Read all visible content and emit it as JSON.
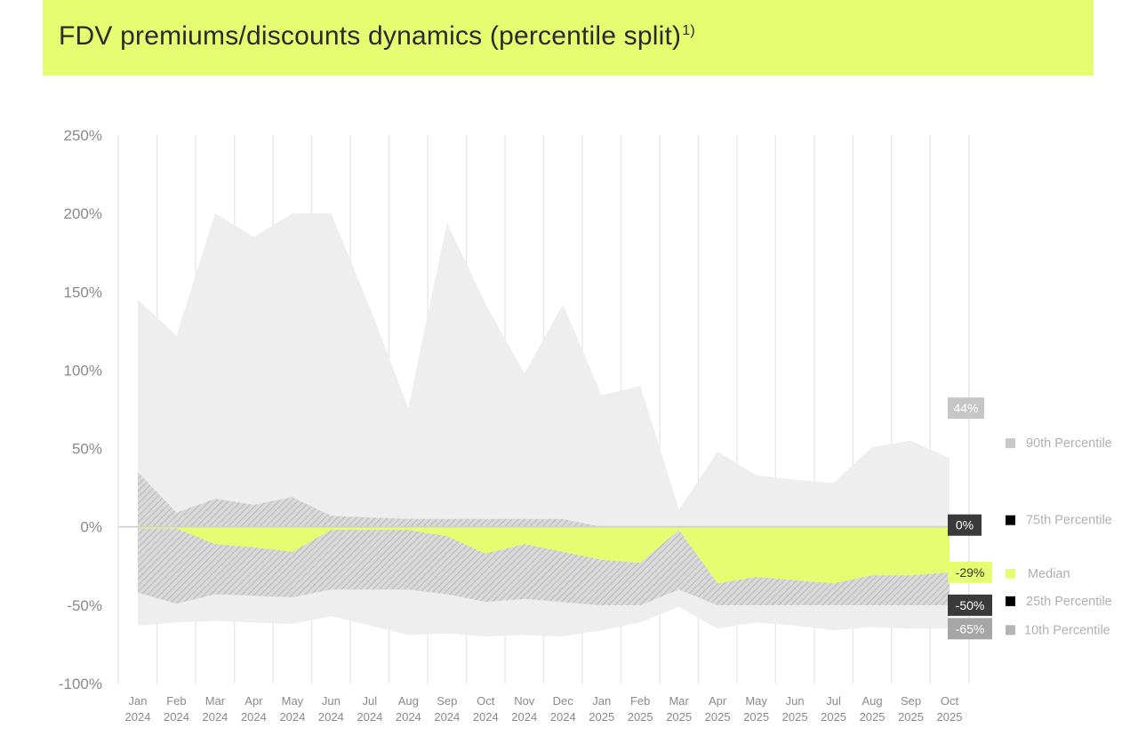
{
  "title": "FDV premiums/discounts dynamics (percentile split)",
  "title_footnote": "1)",
  "colors": {
    "header_bg": "#e6fd72",
    "band_outer": "#eeeeee",
    "band_inner_hatch": "#d3d3d3",
    "median": "#e6fd72",
    "zero_line": "#cfcfcf",
    "grid": "#e9e9e9"
  },
  "chart_data": {
    "type": "area",
    "ylim": [
      -100,
      250
    ],
    "yticks": [
      250,
      200,
      150,
      100,
      50,
      0,
      -50,
      -100
    ],
    "ytick_labels": [
      "250%",
      "200%",
      "150%",
      "100%",
      "50%",
      "0%",
      "-50%",
      "-100%"
    ],
    "grid": "vertical",
    "x_labels": [
      [
        "Jan",
        "2024"
      ],
      [
        "Feb",
        "2024"
      ],
      [
        "Mar",
        "2024"
      ],
      [
        "Apr",
        "2024"
      ],
      [
        "May",
        "2024"
      ],
      [
        "Jun",
        "2024"
      ],
      [
        "Jul",
        "2024"
      ],
      [
        "Aug",
        "2024"
      ],
      [
        "Sep",
        "2024"
      ],
      [
        "Oct",
        "2024"
      ],
      [
        "Nov",
        "2024"
      ],
      [
        "Dec",
        "2024"
      ],
      [
        "Jan",
        "2025"
      ],
      [
        "Feb",
        "2025"
      ],
      [
        "Mar",
        "2025"
      ],
      [
        "Apr",
        "2025"
      ],
      [
        "May",
        "2025"
      ],
      [
        "Jun",
        "2025"
      ],
      [
        "Jul",
        "2025"
      ],
      [
        "Aug",
        "2025"
      ],
      [
        "Sep",
        "2025"
      ],
      [
        "Oct",
        "2025"
      ]
    ],
    "series": [
      {
        "name": "90th Percentile",
        "values": [
          145,
          122,
          200,
          185,
          200,
          200,
          140,
          76,
          194,
          142,
          98,
          142,
          84,
          90,
          11,
          48,
          33,
          30,
          28,
          51,
          55,
          44
        ]
      },
      {
        "name": "75th Percentile",
        "values": [
          35,
          9,
          18,
          14,
          19,
          7,
          6,
          5,
          5,
          5,
          5,
          5,
          0,
          0,
          0,
          0,
          0,
          0,
          0,
          0,
          0,
          0
        ]
      },
      {
        "name": "Median",
        "values": [
          -1,
          -1,
          -11,
          -13,
          -16,
          -2,
          -2,
          -2,
          -6,
          -17,
          -11,
          -16,
          -21,
          -23,
          -2,
          -36,
          -32,
          -34,
          -36,
          -31,
          -31,
          -29
        ]
      },
      {
        "name": "25th Percentile",
        "values": [
          -42,
          -49,
          -43,
          -44,
          -45,
          -40,
          -40,
          -40,
          -43,
          -48,
          -46,
          -48,
          -50,
          -50,
          -40,
          -50,
          -50,
          -50,
          -50,
          -50,
          -50,
          -50
        ]
      },
      {
        "name": "10th Percentile",
        "values": [
          -63,
          -61,
          -60,
          -61,
          -62,
          -57,
          -63,
          -69,
          -68,
          -70,
          -69,
          -70,
          -66,
          -61,
          -51,
          -65,
          -61,
          -63,
          -66,
          -64,
          -65,
          -65
        ]
      }
    ],
    "end_labels": [
      {
        "series": "90th Percentile",
        "text": "44%"
      },
      {
        "series": "75th Percentile",
        "text": "0%"
      },
      {
        "series": "Median",
        "text": "-29%"
      },
      {
        "series": "25th Percentile",
        "text": "-50%"
      },
      {
        "series": "10th Percentile",
        "text": "-65%"
      }
    ],
    "legend": {
      "placement": "right",
      "items": [
        {
          "label": "90th Percentile",
          "color": "#c8c8c8"
        },
        {
          "label": "75th Percentile",
          "color": "#000000"
        },
        {
          "label": "Median",
          "color": "#e6fd72"
        },
        {
          "label": "25th Percentile",
          "color": "#000000"
        },
        {
          "label": "10th Percentile",
          "color": "#b4b4b4"
        }
      ]
    }
  }
}
